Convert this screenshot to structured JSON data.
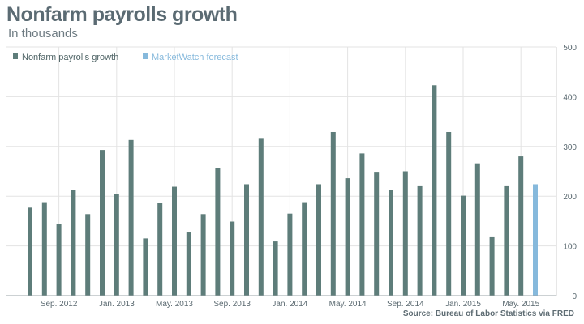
{
  "header": {
    "title": "Nonfarm payrolls growth",
    "subtitle": "In thousands",
    "source": "Source: Bureau of Labor Statistics via FRED"
  },
  "colors": {
    "actual": "#5e7d7a",
    "forecast": "#86b9dc",
    "grid": "#e3e3e3",
    "text": "#5a6970"
  },
  "chart_data": {
    "type": "bar",
    "title": "Nonfarm payrolls growth",
    "subtitle": "In thousands",
    "ylim": [
      0,
      500
    ],
    "yticks": [
      0,
      100,
      200,
      300,
      400,
      500
    ],
    "y_axis_position": "right",
    "grid": true,
    "legend": "top-left",
    "xtick_labels": [
      {
        "label": "Sep. 2012",
        "index": 2
      },
      {
        "label": "Jan. 2013",
        "index": 6
      },
      {
        "label": "May. 2013",
        "index": 10
      },
      {
        "label": "Sep. 2013",
        "index": 14
      },
      {
        "label": "Jan. 2014",
        "index": 18
      },
      {
        "label": "May. 2014",
        "index": 22
      },
      {
        "label": "Sep. 2014",
        "index": 26
      },
      {
        "label": "Jan. 2015",
        "index": 30
      },
      {
        "label": "May. 2015",
        "index": 34
      }
    ],
    "series": [
      {
        "name": "Nonfarm payrolls growth",
        "color": "#5e7d7a",
        "values": [
          177,
          188,
          144,
          213,
          164,
          293,
          205,
          313,
          115,
          186,
          219,
          127,
          164,
          256,
          149,
          224,
          317,
          109,
          165,
          188,
          224,
          329,
          236,
          286,
          249,
          213,
          250,
          220,
          423,
          329,
          201,
          266,
          119,
          220,
          280,
          null
        ]
      },
      {
        "name": "MarketWatch forecast",
        "color": "#86b9dc",
        "values": [
          null,
          null,
          null,
          null,
          null,
          null,
          null,
          null,
          null,
          null,
          null,
          null,
          null,
          null,
          null,
          null,
          null,
          null,
          null,
          null,
          null,
          null,
          null,
          null,
          null,
          null,
          null,
          null,
          null,
          null,
          null,
          null,
          null,
          null,
          null,
          224
        ]
      }
    ]
  }
}
